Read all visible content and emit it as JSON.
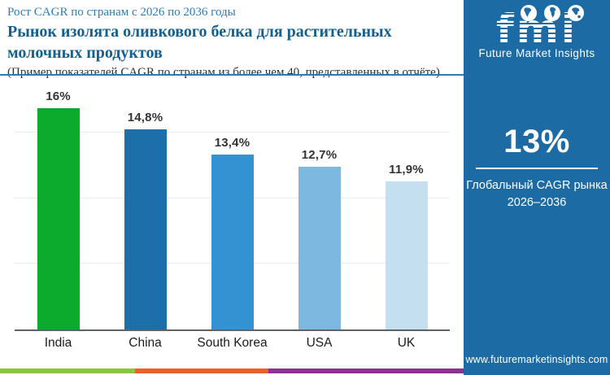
{
  "header": {
    "kicker": "Рост CAGR по странам с 2026 по 2036 годы",
    "title": "Рынок изолята оливкового белка для растительных молочных продуктов",
    "subtitle": "(Пример показателей CAGR по странам из более чем 40, представленных в отчёте)"
  },
  "chart_data": {
    "type": "bar",
    "title": "Рост CAGR по странам с 2026 по 2036 годы",
    "categories": [
      "India",
      "China",
      "South Korea",
      "USA",
      "UK"
    ],
    "values": [
      16,
      14.8,
      13.4,
      12.7,
      11.9
    ],
    "value_labels": [
      "16%",
      "14,8%",
      "13,4%",
      "12,7%",
      "11,9%"
    ],
    "bar_colors": [
      "#0cab2e",
      "#1c6fa9",
      "#3292d2",
      "#7cb8df",
      "#c4e0f0"
    ],
    "xlabel": "",
    "ylabel": "",
    "ylim": [
      3.6,
      17.5
    ],
    "grid": "faint horizontal gridlines, no y-axis tick labels",
    "legend": "none",
    "value_label_position": "above bars"
  },
  "sidebar": {
    "logo": {
      "text": "fmi",
      "caption": "Future Market Insights",
      "globes": [
        "americas-globe-icon",
        "europe-africa-globe-icon",
        "asia-pacific-globe-icon"
      ]
    },
    "stat": {
      "value": "13%",
      "label_line1": "Глобальный CAGR рынка",
      "label_line2": "2026–2036"
    },
    "website": "www.futuremarketinsights.com"
  },
  "footer": {
    "stripe_colors": [
      "#8cc63e",
      "#e8622b",
      "#8e3194"
    ]
  },
  "colors": {
    "accent_blue": "#2e7cb4",
    "title_blue": "#15608f",
    "sidebar_blue": "#1d6ba4",
    "axis_gray": "#5f6368"
  }
}
